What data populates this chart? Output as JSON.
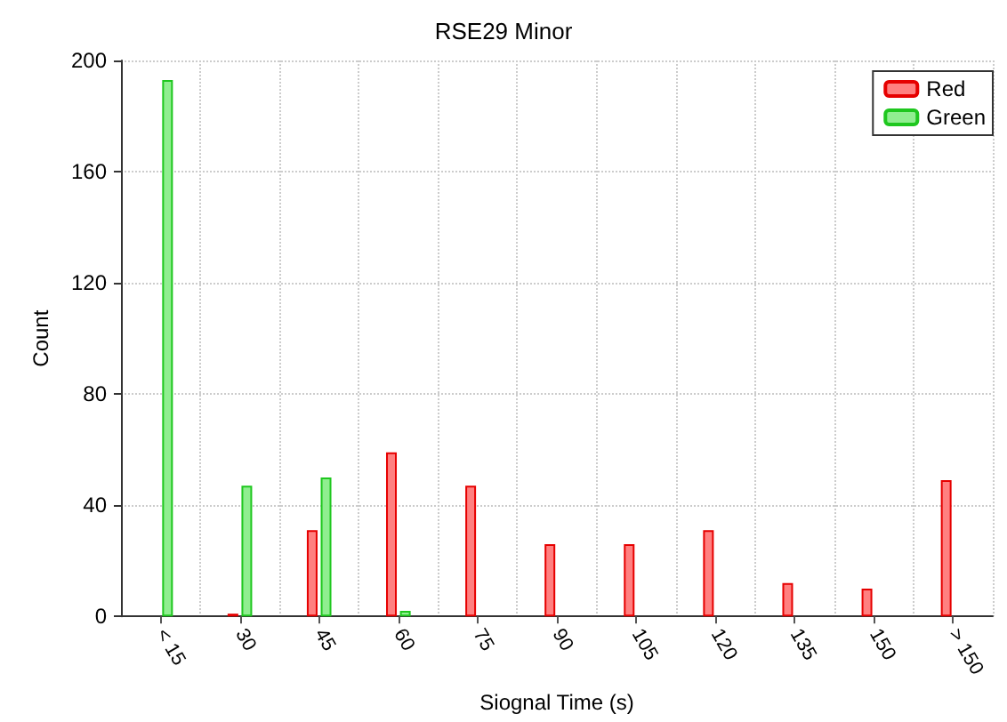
{
  "chart_data": {
    "type": "bar",
    "title": "RSE29 Minor",
    "xlabel": "Siognal Time (s)",
    "ylabel": "Count",
    "categories": [
      "< 15",
      "30",
      "45",
      "60",
      "75",
      "90",
      "105",
      "120",
      "135",
      "150",
      "> 150"
    ],
    "series": [
      {
        "name": "Red",
        "color": "#ff8080",
        "values": [
          0,
          1,
          31,
          59,
          47,
          26,
          26,
          31,
          12,
          10,
          49
        ]
      },
      {
        "name": "Green",
        "color": "#90ee90",
        "values": [
          193,
          47,
          50,
          2,
          0,
          0,
          0,
          0,
          0,
          0,
          0
        ]
      }
    ],
    "ylim": [
      0,
      200
    ],
    "yticks": [
      0,
      40,
      80,
      120,
      160,
      200
    ],
    "grid": true,
    "legend": "top right"
  }
}
